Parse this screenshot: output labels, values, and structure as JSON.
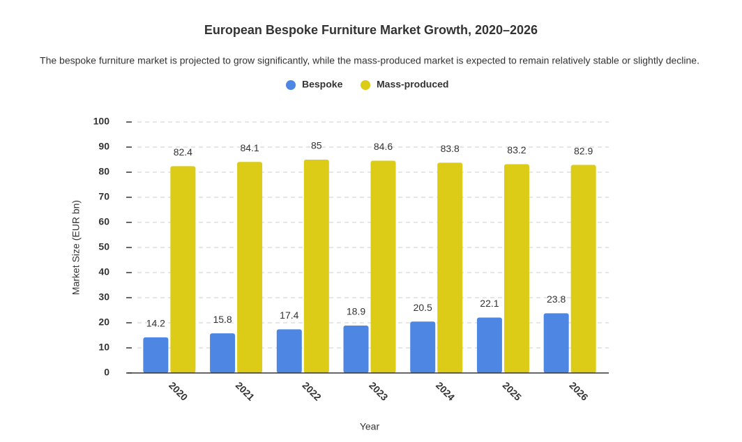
{
  "chart_data": {
    "type": "bar",
    "title": "European Bespoke Furniture Market Growth, 2020–2026",
    "subtitle": "The bespoke furniture market is projected to grow significantly, while the mass-produced market is expected to remain relatively stable or slightly decline.",
    "x_label": "Year",
    "y_label": "Market Size (EUR bn)",
    "categories": [
      "2020",
      "2021",
      "2022",
      "2023",
      "2024",
      "2025",
      "2026"
    ],
    "series": [
      {
        "name": "Bespoke",
        "color": "#4e86e4",
        "values": [
          14.2,
          15.8,
          17.4,
          18.9,
          20.5,
          22.1,
          23.8
        ]
      },
      {
        "name": "Mass-produced",
        "color": "#dccb17",
        "values": [
          82.4,
          84.1,
          85,
          84.6,
          83.8,
          83.2,
          82.9
        ]
      }
    ],
    "ylim": [
      0,
      100
    ],
    "yticks": [
      0,
      10,
      20,
      30,
      40,
      50,
      60,
      70,
      80,
      90,
      100
    ],
    "grid": true
  }
}
